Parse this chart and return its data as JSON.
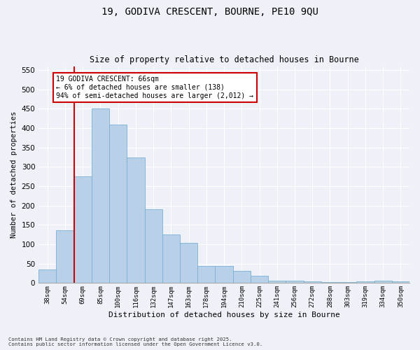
{
  "title_line1": "19, GODIVA CRESCENT, BOURNE, PE10 9QU",
  "title_line2": "Size of property relative to detached houses in Bourne",
  "xlabel": "Distribution of detached houses by size in Bourne",
  "ylabel": "Number of detached properties",
  "categories": [
    "38sqm",
    "54sqm",
    "69sqm",
    "85sqm",
    "100sqm",
    "116sqm",
    "132sqm",
    "147sqm",
    "163sqm",
    "178sqm",
    "194sqm",
    "210sqm",
    "225sqm",
    "241sqm",
    "256sqm",
    "272sqm",
    "288sqm",
    "303sqm",
    "319sqm",
    "334sqm",
    "350sqm"
  ],
  "values": [
    35,
    137,
    275,
    450,
    410,
    325,
    190,
    125,
    104,
    45,
    45,
    32,
    18,
    7,
    7,
    5,
    3,
    3,
    5,
    6,
    5
  ],
  "bar_color": "#b8d0e8",
  "bar_edge_color": "#7aafd4",
  "vline_x_idx": 2,
  "vline_color": "#cc0000",
  "annotation_text": "19 GODIVA CRESCENT: 66sqm\n← 6% of detached houses are smaller (138)\n94% of semi-detached houses are larger (2,012) →",
  "annotation_box_edgecolor": "#cc0000",
  "annotation_fill": "#ffffff",
  "ylim": [
    0,
    560
  ],
  "yticks": [
    0,
    50,
    100,
    150,
    200,
    250,
    300,
    350,
    400,
    450,
    500,
    550
  ],
  "background_color": "#eef2f8",
  "grid_color": "#ffffff",
  "footer_line1": "Contains HM Land Registry data © Crown copyright and database right 2025.",
  "footer_line2": "Contains public sector information licensed under the Open Government Licence v3.0."
}
